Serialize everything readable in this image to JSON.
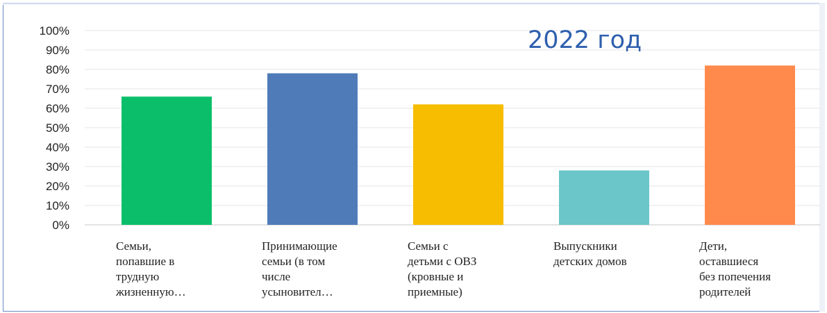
{
  "chart_data": {
    "type": "bar",
    "title": "2022 год",
    "categories": [
      "Семьи,\nпопавшие в\nтрудную\nжизненную…",
      "Принимающие\nсемьи (в том\nчисле\nусыновител…",
      "Семьи с\nдетьми с ОВЗ\n(кровные и\nприемные)",
      "Выпускники\nдетских домов",
      "Дети,\nоставшиеся\nбез попечения\nродителей"
    ],
    "values": [
      66,
      78,
      62,
      28,
      82
    ],
    "colors": [
      "#0bbf6a",
      "#4f7cb8",
      "#f7bd00",
      "#6ac6c9",
      "#ff8a4c"
    ],
    "ylim": [
      0,
      100
    ],
    "yticks": [
      "0%",
      "10%",
      "20%",
      "30%",
      "40%",
      "50%",
      "60%",
      "70%",
      "80%",
      "90%",
      "100%"
    ],
    "grid": true,
    "legend": "none"
  }
}
